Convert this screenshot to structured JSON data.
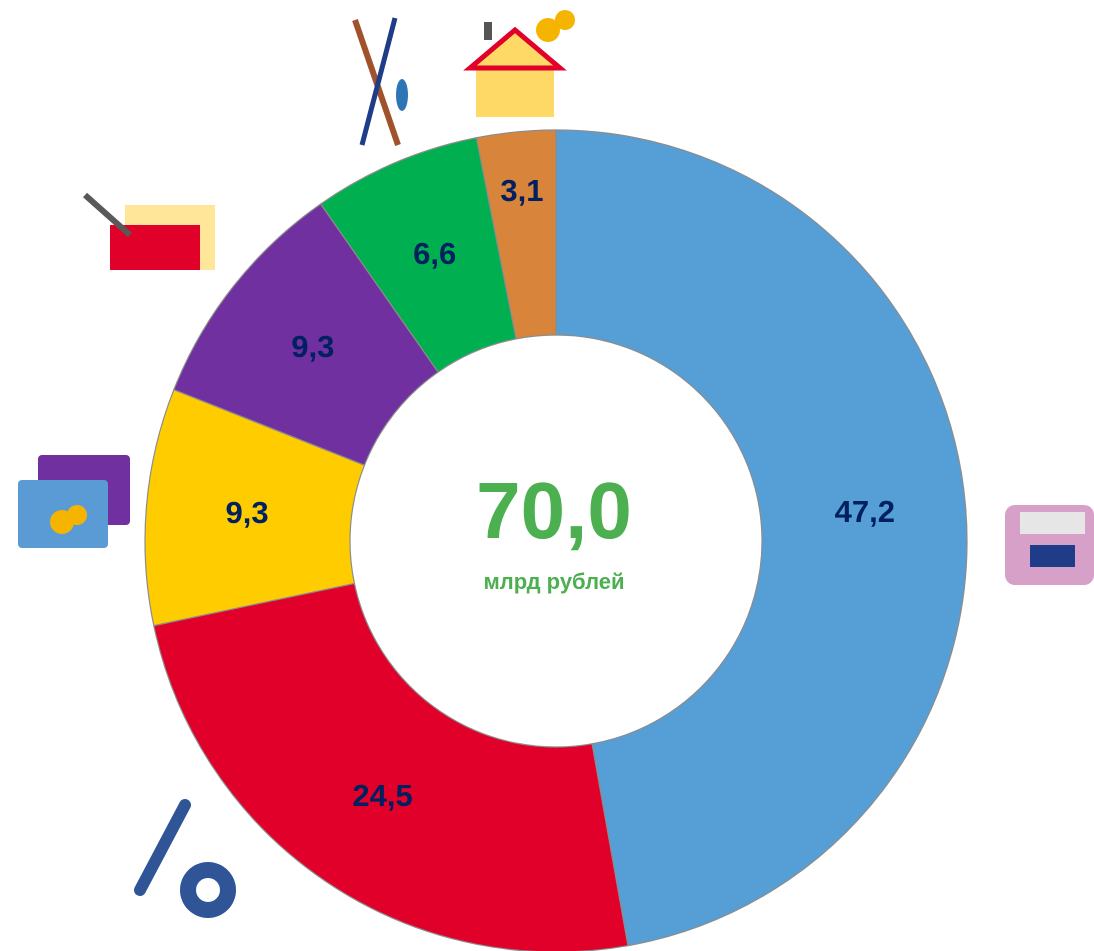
{
  "chart_data": {
    "type": "donut",
    "values": [
      47.2,
      24.5,
      9.3,
      9.3,
      6.6,
      3.1
    ],
    "value_labels": [
      "47,2",
      "24,5",
      "9,3",
      "9,3",
      "6,6",
      "3,1"
    ],
    "colors": [
      "#559fd6",
      "#e0002a",
      "#ffcc00",
      "#7030a0",
      "#00b050",
      "#d9843b"
    ],
    "center_value": "70,0",
    "center_label": "млрд рублей"
  }
}
